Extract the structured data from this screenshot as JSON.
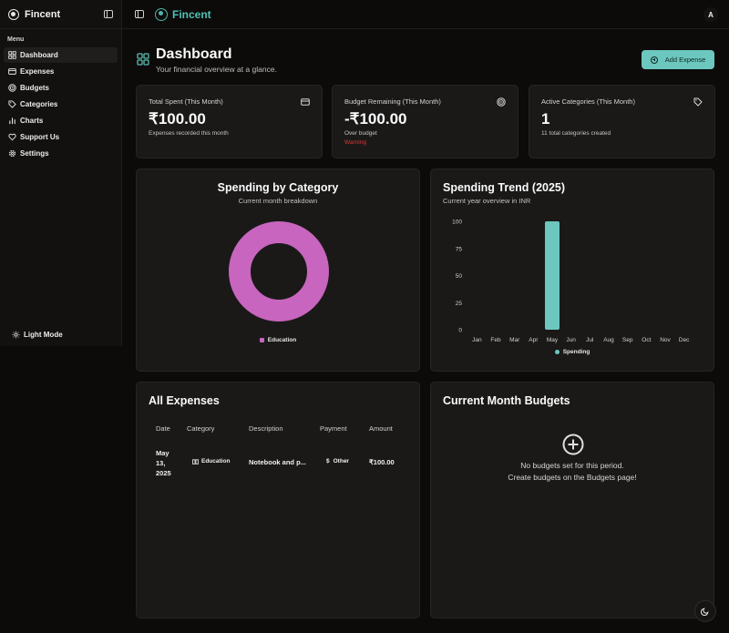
{
  "app": {
    "name": "Fincent"
  },
  "sidebar": {
    "menu_label": "Menu",
    "items": [
      {
        "label": "Dashboard",
        "icon": "dashboard-icon",
        "active": true
      },
      {
        "label": "Expenses",
        "icon": "card-icon"
      },
      {
        "label": "Budgets",
        "icon": "target-icon"
      },
      {
        "label": "Categories",
        "icon": "tag-icon"
      },
      {
        "label": "Charts",
        "icon": "bar-chart-icon"
      },
      {
        "label": "Support Us",
        "icon": "heart-icon"
      },
      {
        "label": "Settings",
        "icon": "gear-icon"
      }
    ],
    "theme_label": "Light Mode"
  },
  "topbar": {
    "avatar_initial": "A"
  },
  "header": {
    "title": "Dashboard",
    "subtitle": "Your financial overview at a glance.",
    "add_button": "Add Expense"
  },
  "stats": [
    {
      "label": "Total Spent (This Month)",
      "value": "₹100.00",
      "note": "Expenses recorded this month",
      "icon": "card-icon"
    },
    {
      "label": "Budget Remaining (This Month)",
      "value": "-₹100.00",
      "note": "Over budget",
      "warning": "Warning",
      "icon": "target-icon"
    },
    {
      "label": "Active Categories (This Month)",
      "value": "1",
      "note": "11 total categories created",
      "icon": "tag-icon"
    }
  ],
  "category_chart": {
    "title": "Spending by Category",
    "subtitle": "Current month breakdown",
    "chart_data": {
      "type": "pie",
      "categories": [
        "Education"
      ],
      "values": [
        100
      ],
      "colors": [
        "#c865be"
      ]
    }
  },
  "trend_chart": {
    "title": "Spending Trend (2025)",
    "subtitle": "Current year overview in INR",
    "chart_data": {
      "type": "bar",
      "categories": [
        "Jan",
        "Feb",
        "Mar",
        "Apr",
        "May",
        "Jun",
        "Jul",
        "Aug",
        "Sep",
        "Oct",
        "Nov",
        "Dec"
      ],
      "series": [
        {
          "name": "Spending",
          "values": [
            0,
            0,
            0,
            0,
            100,
            0,
            0,
            0,
            0,
            0,
            0,
            0
          ]
        }
      ],
      "yticks": [
        "0",
        "25",
        "50",
        "75",
        "100"
      ],
      "ylim": [
        0,
        100
      ],
      "color": "#6cc7be",
      "legend": "bottom"
    }
  },
  "expenses": {
    "title": "All Expenses",
    "columns": [
      "Date",
      "Category",
      "Description",
      "Payment",
      "Amount"
    ],
    "rows": [
      {
        "date": [
          "May",
          "13,",
          "2025"
        ],
        "category": "Education",
        "description": "Notebook and p...",
        "payment": "Other",
        "amount": "₹100.00"
      }
    ]
  },
  "budgets": {
    "title": "Current Month Budgets",
    "empty_line1": "No budgets set for this period.",
    "empty_line2": "Create budgets on the Budgets page!"
  }
}
